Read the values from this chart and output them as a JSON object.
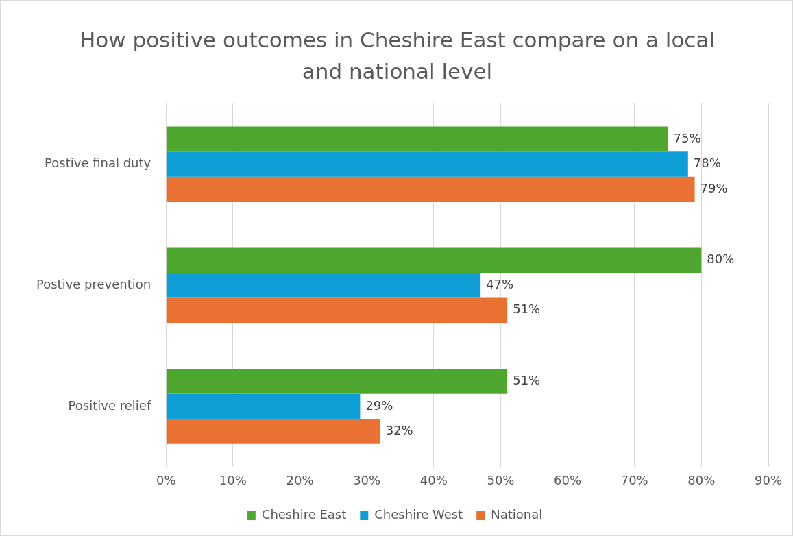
{
  "chart_data": {
    "type": "bar",
    "orientation": "horizontal",
    "title": "How positive outcomes in Cheshire East compare on a local and national level",
    "categories": [
      "Postive final duty",
      "Postive prevention",
      "Positive relief"
    ],
    "series": [
      {
        "name": "Cheshire East",
        "color": "#4ea72e",
        "values": [
          75,
          80,
          51
        ],
        "value_labels": [
          "75%",
          "80%",
          "51%"
        ]
      },
      {
        "name": "Cheshire West",
        "color": "#0f9ed5",
        "values": [
          78,
          47,
          29
        ],
        "value_labels": [
          "78%",
          "47%",
          "29%"
        ]
      },
      {
        "name": "National",
        "color": "#e97132",
        "values": [
          79,
          51,
          32
        ],
        "value_labels": [
          "79%",
          "51%",
          "32%"
        ]
      }
    ],
    "xlim": [
      0,
      90
    ],
    "xticks": [
      {
        "value": 0,
        "label": "0%"
      },
      {
        "value": 10,
        "label": "10%"
      },
      {
        "value": 20,
        "label": "20%"
      },
      {
        "value": 30,
        "label": "30%"
      },
      {
        "value": 40,
        "label": "40%"
      },
      {
        "value": 50,
        "label": "50%"
      },
      {
        "value": 60,
        "label": "60%"
      },
      {
        "value": 70,
        "label": "70%"
      },
      {
        "value": 80,
        "label": "80%"
      },
      {
        "value": 90,
        "label": "90%"
      }
    ],
    "grid": "x",
    "legend": "bottom"
  }
}
